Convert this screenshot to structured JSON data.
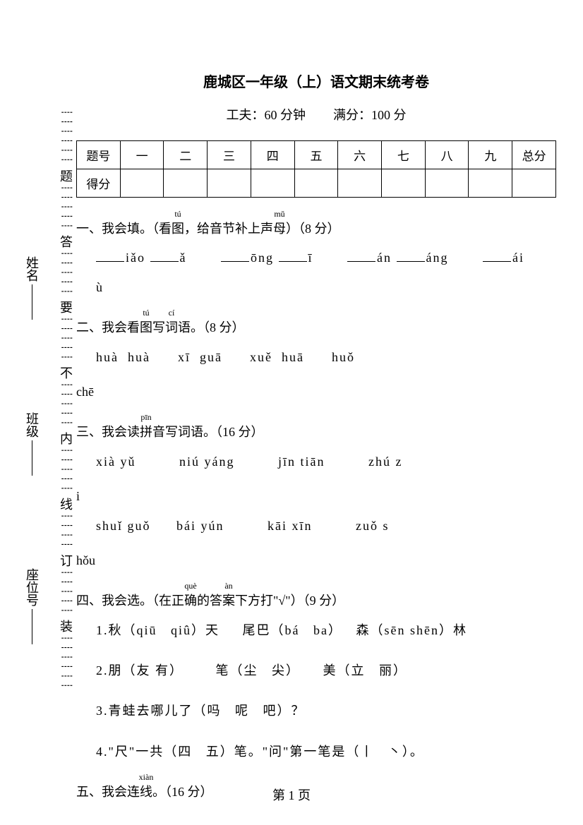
{
  "title": "鹿城区一年级（上）语文期末统考卷",
  "subtitle_time_label": "工夫：",
  "subtitle_time_value": "60 分钟",
  "subtitle_score_label": "满分：",
  "subtitle_score_value": "100 分",
  "table": {
    "row1_label": "题号",
    "headers": [
      "一",
      "二",
      "三",
      "四",
      "五",
      "六",
      "七",
      "八",
      "九",
      "总分"
    ],
    "row2_label": "得分"
  },
  "rail": {
    "labels": [
      "题",
      "答",
      "要",
      "不",
      "内",
      "线",
      "订",
      "装"
    ]
  },
  "side": {
    "name": "姓名",
    "class": "班级",
    "seat": "座位号"
  },
  "q1": {
    "title_prefix": "一、我会填。（看",
    "title_tu": "图",
    "title_tu_rt": "tú",
    "title_mid": "，给音节补上声",
    "title_mu": "母",
    "title_mu_rt": "mǔ",
    "title_suffix": "）（8 分）",
    "items": [
      "iǎo",
      "ǎ",
      "ōng",
      "ī",
      "án",
      "áng",
      "ái"
    ],
    "line2": "ù"
  },
  "q2": {
    "title_prefix": "二、我会看",
    "tu": "图",
    "tu_rt": "tú",
    "mid": "写",
    "ci": "词",
    "ci_rt": "cí",
    "suffix": "语。（8 分）",
    "line1": "huà  huà      xī  guā      xuě  huā      huǒ",
    "line2": "chē"
  },
  "q3": {
    "title_prefix": "三、我会读",
    "pin": "拼",
    "pin_rt": "pīn",
    "suffix": "音写词语。（16 分）",
    "row1": [
      "xià  yǔ",
      "niú yáng",
      "jīn  tiān",
      "zhú z"
    ],
    "row1_tail": "i",
    "row2": [
      "shuǐ  guǒ",
      "bái  yún",
      "kāi  xīn",
      "zuǒ s"
    ],
    "row2_tail": "hǒu"
  },
  "q4": {
    "title_prefix": "四、我会选。（在正",
    "que": "确",
    "que_rt": "què",
    "mid": "的答",
    "an": "案",
    "an_rt": "àn",
    "suffix": "下方打\"√\"）（9 分）",
    "line1": "1.秋（qiū   qiû）天     尾巴（bá   ba）   森（sēn shēn）林",
    "line2": "2.朋（友 有）       笔（尘   尖）     美（立   丽）",
    "line3": "3.青蛙去哪儿了（吗   呢   吧）？",
    "line4": "4.\"尺\"一共（四   五）笔。\"问\"第一笔是（丨   丶）。"
  },
  "q5": {
    "title_prefix": "五、我会连",
    "xian": "线",
    "xian_rt": "xiàn",
    "suffix": "。（16 分）"
  },
  "footer": "第 1 页"
}
